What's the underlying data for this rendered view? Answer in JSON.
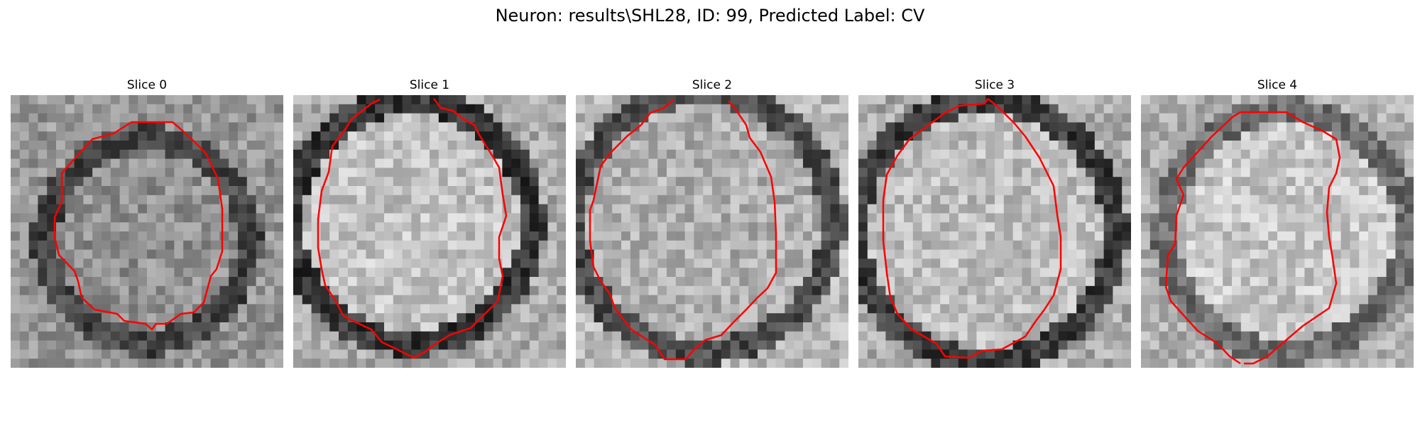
{
  "figure": {
    "title": "Neuron: results\\SHL28, ID: 99, Predicted Label: CV"
  },
  "slices": [
    {
      "label": "Slice 0"
    },
    {
      "label": "Slice 1"
    },
    {
      "label": "Slice 2"
    },
    {
      "label": "Slice 3"
    },
    {
      "label": "Slice 4"
    }
  ],
  "colors": {
    "contour": "#ff0000",
    "background": "#ffffff"
  }
}
